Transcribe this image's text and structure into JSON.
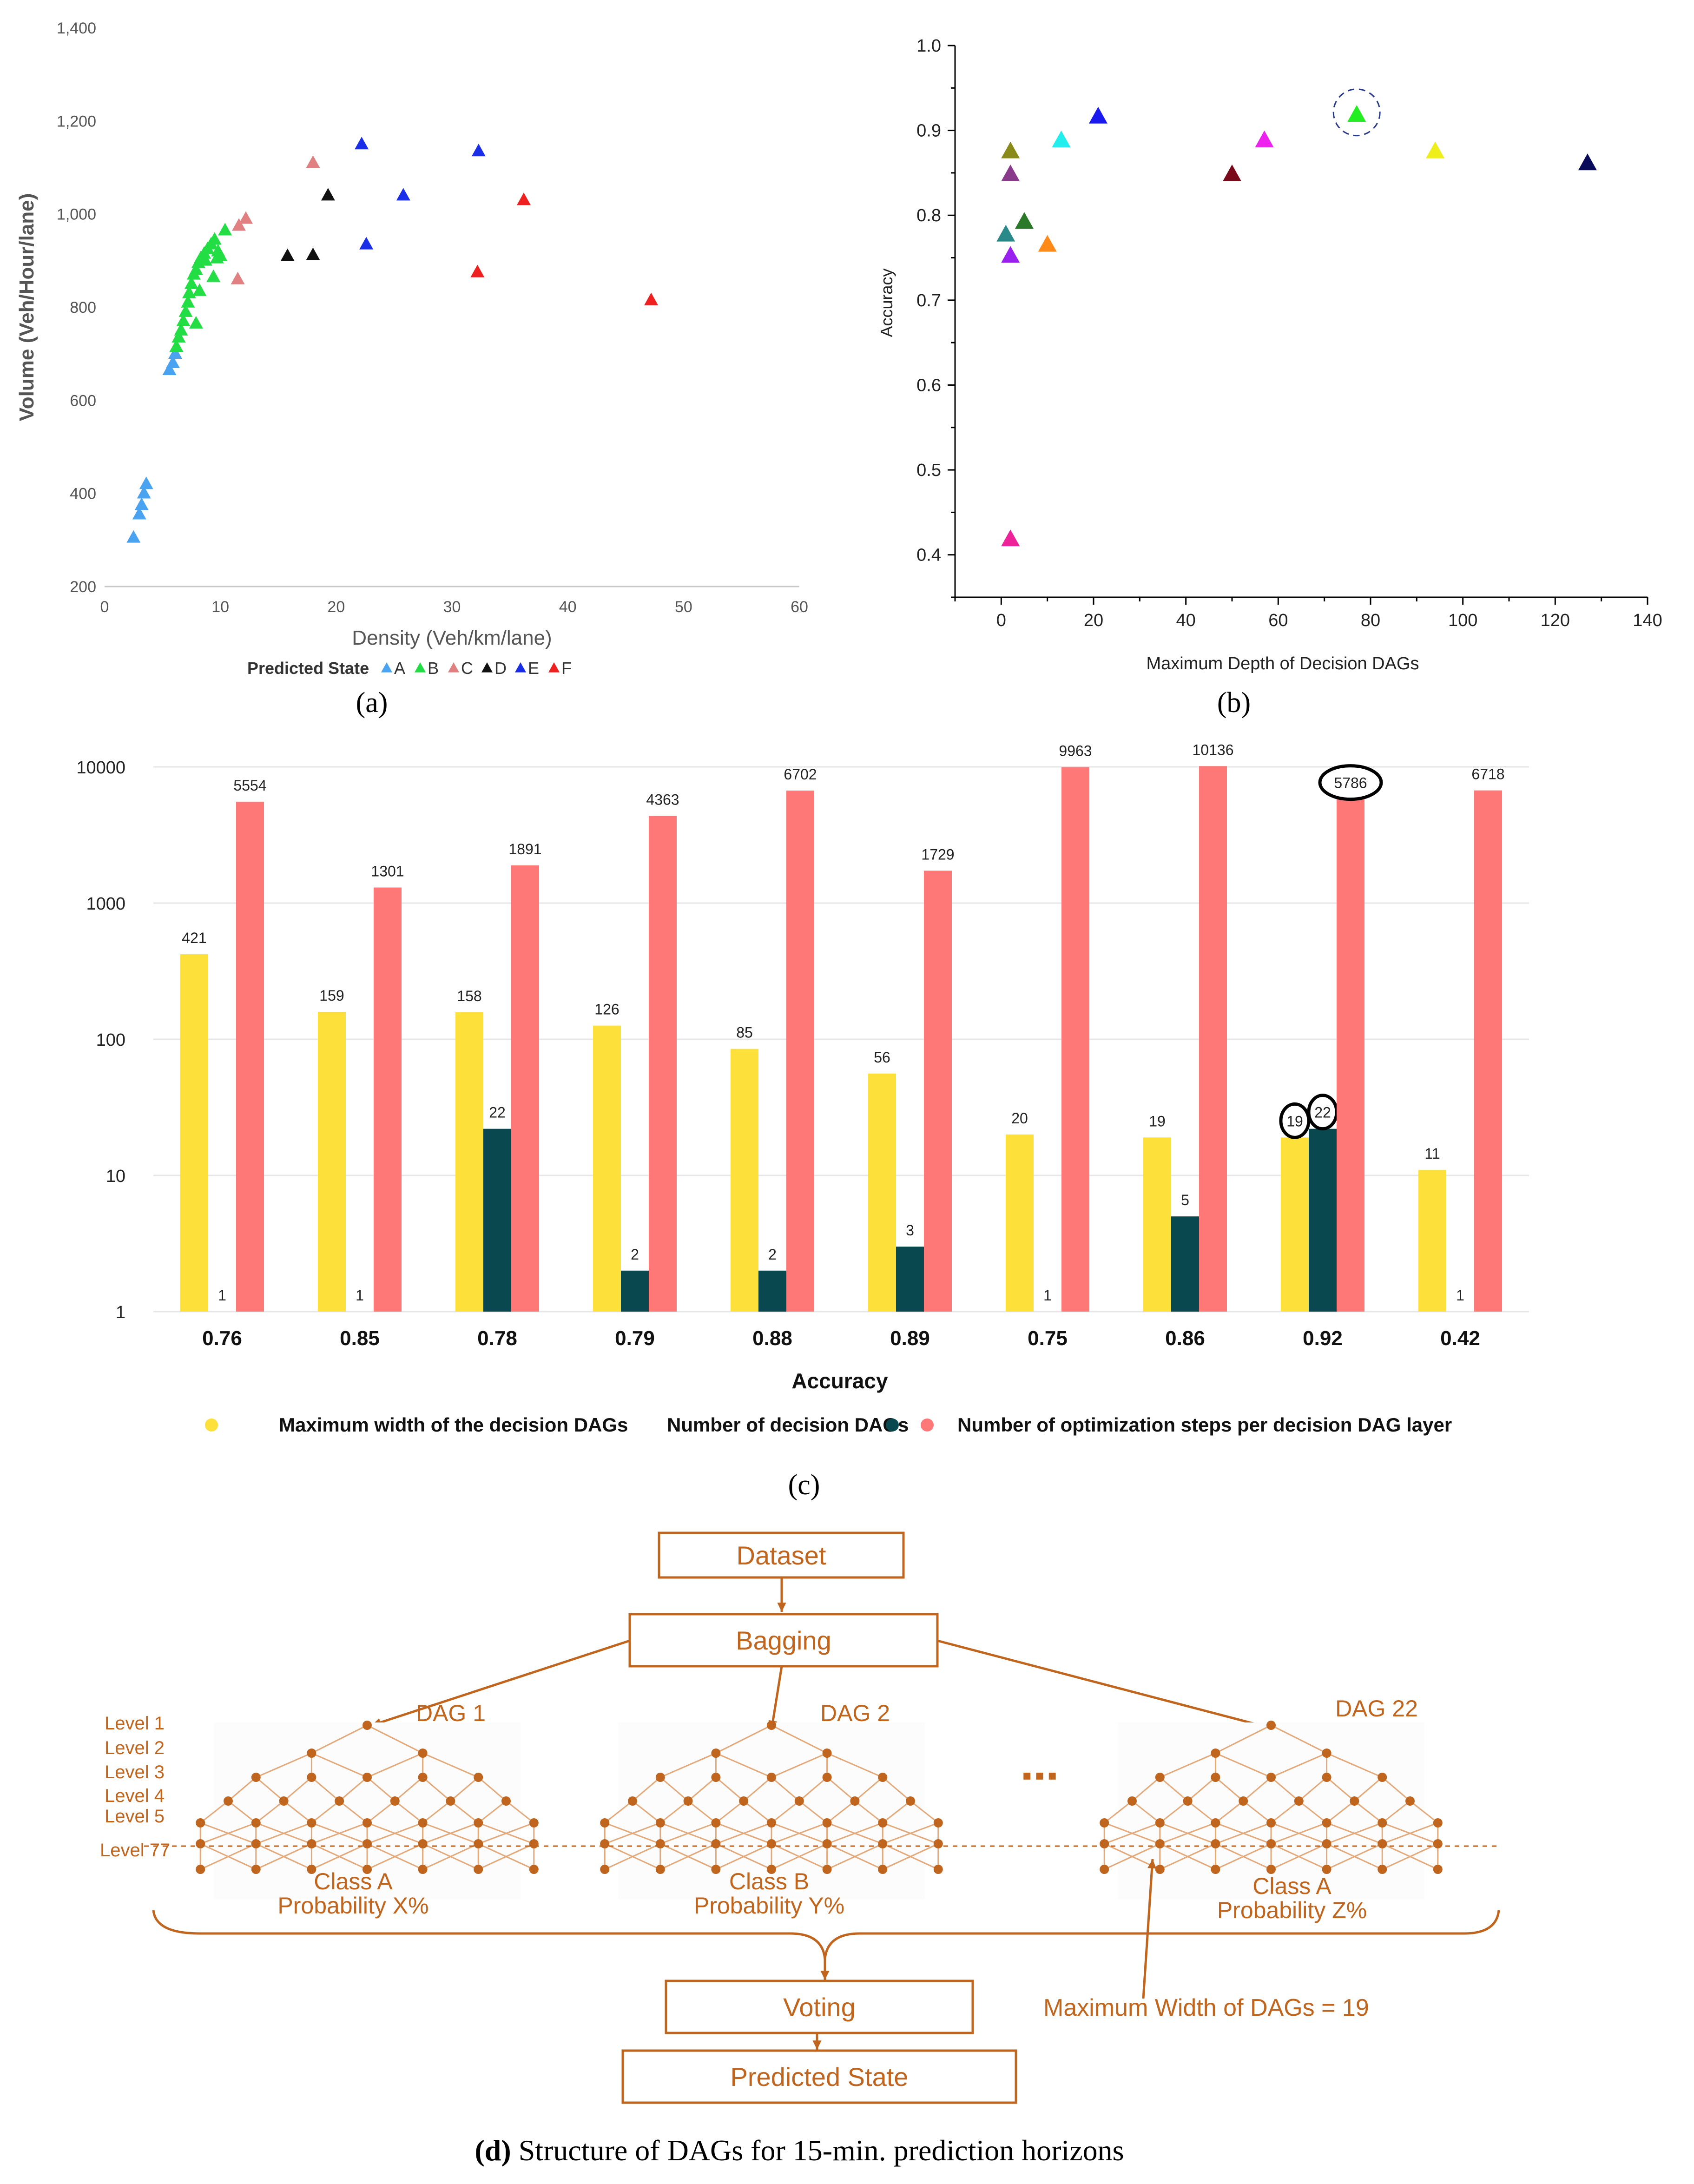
{
  "chart_data": [
    {
      "id": "a",
      "type": "scatter",
      "panel_label": "(a)",
      "xlabel": "Density (Veh/km/lane)",
      "ylabel": "Volume (Veh/Hour/lane)",
      "xlim": [
        0,
        60
      ],
      "ylim": [
        200,
        1400
      ],
      "xticks": [
        "0",
        "10",
        "20",
        "30",
        "40",
        "50",
        "60"
      ],
      "yticks": [
        "200",
        "400",
        "600",
        "800",
        "1,000",
        "1,200",
        "1,400"
      ],
      "legend_title": "Predicted State",
      "series": [
        {
          "name": "A",
          "color": "#4aa3f0",
          "points": [
            [
              2.5,
              305
            ],
            [
              3,
              355
            ],
            [
              3.2,
              375
            ],
            [
              3.4,
              400
            ],
            [
              3.6,
              420
            ],
            [
              5.6,
              665
            ],
            [
              5.9,
              680
            ],
            [
              6.1,
              700
            ]
          ]
        },
        {
          "name": "B",
          "color": "#22dd44",
          "points": [
            [
              6.2,
              715
            ],
            [
              6.4,
              735
            ],
            [
              6.6,
              750
            ],
            [
              6.8,
              770
            ],
            [
              7,
              790
            ],
            [
              7.2,
              810
            ],
            [
              7.3,
              830
            ],
            [
              7.5,
              850
            ],
            [
              7.7,
              870
            ],
            [
              7.9,
              880
            ],
            [
              8.1,
              895
            ],
            [
              8.3,
              905
            ],
            [
              8.6,
              915
            ],
            [
              8.9,
              925
            ],
            [
              9.2,
              935
            ],
            [
              9.5,
              945
            ],
            [
              9.8,
              920
            ],
            [
              10,
              910
            ],
            [
              10.4,
              965
            ],
            [
              9.4,
              865
            ],
            [
              8.2,
              835
            ],
            [
              7.9,
              765
            ],
            [
              8.7,
              900
            ],
            [
              9.7,
              905
            ]
          ]
        },
        {
          "name": "C",
          "color": "#e08080",
          "points": [
            [
              11.5,
              860
            ],
            [
              11.6,
              975
            ],
            [
              12.2,
              990
            ],
            [
              18,
              1110
            ]
          ]
        },
        {
          "name": "D",
          "color": "#111111",
          "points": [
            [
              15.8,
              910
            ],
            [
              18,
              912
            ],
            [
              19.3,
              1040
            ]
          ]
        },
        {
          "name": "E",
          "color": "#1a2ee8",
          "points": [
            [
              22.2,
              1150
            ],
            [
              22.6,
              935
            ],
            [
              25.8,
              1040
            ],
            [
              32.3,
              1135
            ]
          ]
        },
        {
          "name": "F",
          "color": "#ee2020",
          "points": [
            [
              32.2,
              875
            ],
            [
              36.2,
              1030
            ],
            [
              47.2,
              815
            ]
          ]
        }
      ]
    },
    {
      "id": "b",
      "type": "scatter",
      "panel_label": "(b)",
      "xlabel": "Maximum Depth of Decision DAGs",
      "ylabel": "Accuracy",
      "xlim": [
        -10,
        140
      ],
      "ylim": [
        0.35,
        1.0
      ],
      "xticks": [
        "0",
        "20",
        "40",
        "60",
        "80",
        "100",
        "120",
        "140"
      ],
      "yticks": [
        "0.4",
        "0.5",
        "0.6",
        "0.7",
        "0.8",
        "0.9",
        "1.0"
      ],
      "points": [
        {
          "x": 2,
          "y": 0.875,
          "color": "#8a8a1a"
        },
        {
          "x": 2,
          "y": 0.848,
          "color": "#8a3a8a"
        },
        {
          "x": 1,
          "y": 0.777,
          "color": "#2a8a8a"
        },
        {
          "x": 5,
          "y": 0.792,
          "color": "#2a7a2a"
        },
        {
          "x": 2,
          "y": 0.752,
          "color": "#9a22ee"
        },
        {
          "x": 10,
          "y": 0.765,
          "color": "#ff8a1a"
        },
        {
          "x": 13,
          "y": 0.888,
          "color": "#22eeee"
        },
        {
          "x": 21,
          "y": 0.916,
          "color": "#1a1aee"
        },
        {
          "x": 2,
          "y": 0.418,
          "color": "#ee2299"
        },
        {
          "x": 50,
          "y": 0.848,
          "color": "#7a0a1a"
        },
        {
          "x": 57,
          "y": 0.888,
          "color": "#ee22ee"
        },
        {
          "x": 77,
          "y": 0.918,
          "color": "#22ee22",
          "highlight": true
        },
        {
          "x": 94,
          "y": 0.875,
          "color": "#eeee1a"
        },
        {
          "x": 127,
          "y": 0.861,
          "color": "#0a0a5a"
        }
      ]
    },
    {
      "id": "c",
      "type": "bar",
      "panel_label": "(c)",
      "scale": "log",
      "xlabel": "Accuracy",
      "categories": [
        "0.76",
        "0.85",
        "0.78",
        "0.79",
        "0.88",
        "0.89",
        "0.75",
        "0.86",
        "0.92",
        "0.42"
      ],
      "yticks": [
        "1",
        "10",
        "100",
        "1000",
        "10000"
      ],
      "ylim": [
        1,
        10000
      ],
      "series": [
        {
          "name": "Maximum width of the decision DAGs",
          "color": "#fde03a",
          "values": [
            421,
            159,
            158,
            126,
            85,
            56,
            20,
            19,
            19,
            11
          ],
          "labels": [
            "421",
            "159",
            "158",
            "126",
            "85",
            "56",
            "20",
            "19",
            "19",
            "11"
          ]
        },
        {
          "name": "Number of decision DAGs",
          "color": "#08484e",
          "values": [
            1,
            1,
            22,
            2,
            2,
            3,
            1,
            5,
            22,
            1
          ],
          "labels": [
            "1",
            "1",
            "22",
            "2",
            "2",
            "3",
            "1",
            "5",
            "22",
            "1"
          ]
        },
        {
          "name": "Number of optimization steps per decision DAG layer",
          "color": "#ff7878",
          "values": [
            5554,
            1301,
            1891,
            4363,
            6702,
            1729,
            9963,
            10136,
            5786,
            6718
          ],
          "labels": [
            "5554",
            "1301",
            "1891",
            "4363",
            "6702",
            "1729",
            "9963",
            "10136",
            "5786",
            "6718"
          ]
        }
      ]
    }
  ],
  "diagram": {
    "caption_bold": "(d)",
    "caption_rest": " Structure of DAGs for 15-min. prediction horizons",
    "dataset_label": "Dataset",
    "bagging_label": "Bagging",
    "dag_titles": [
      "DAG 1",
      "DAG 2",
      "DAG 22"
    ],
    "levels": [
      "Level 1",
      "Level 2",
      "Level 3",
      "Level 4",
      "Level 5",
      "Level 77"
    ],
    "ellipsis": "▪▪▪",
    "classes": [
      {
        "class": "Class A",
        "prob": "Probability X%"
      },
      {
        "class": "Class B",
        "prob": "Probability Y%"
      },
      {
        "class": "Class A",
        "prob": "Probability Z%"
      }
    ],
    "voting_label": "Voting",
    "predicted_label": "Predicted State",
    "width_note": "Maximum Width of DAGs = 19",
    "accent": "#c0651e"
  }
}
